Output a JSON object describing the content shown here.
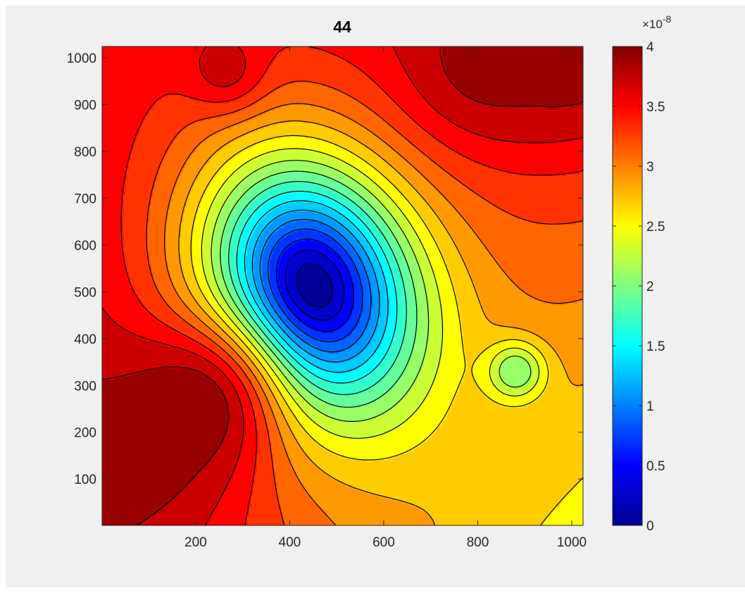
{
  "chart_data": {
    "type": "heatmap",
    "subtype": "filled-contour",
    "title": "44",
    "xlabel": "",
    "ylabel": "",
    "xlim": [
      1,
      1024
    ],
    "ylim": [
      1,
      1024
    ],
    "x_ticks": [
      "200",
      "400",
      "600",
      "800",
      "1000"
    ],
    "y_ticks": [
      "100",
      "200",
      "300",
      "400",
      "500",
      "600",
      "700",
      "800",
      "900",
      "1000"
    ],
    "colorbar": {
      "colormap": "jet",
      "range": [
        0,
        4
      ],
      "exponent_label": "×10",
      "exponent_power": "-8",
      "ticks": [
        "0",
        "0.5",
        "1",
        "1.5",
        "2",
        "2.5",
        "3",
        "3.5",
        "4"
      ]
    },
    "contour_levels": [
      0.2,
      0.4,
      0.6,
      0.8,
      1.0,
      1.2,
      1.4,
      1.6,
      1.8,
      2.0,
      2.2,
      2.4,
      2.6,
      2.8,
      3.0,
      3.2,
      3.4,
      3.6,
      3.8
    ],
    "features": [
      {
        "kind": "minimum",
        "x": 450,
        "y": 510,
        "value": 0.0
      },
      {
        "kind": "local_minimum",
        "x": 880,
        "y": 330,
        "value": 2.0
      },
      {
        "kind": "maximum",
        "x": 190,
        "y": 250,
        "value": 4.0
      },
      {
        "kind": "maximum",
        "x": 60,
        "y": 150,
        "value": 3.9
      },
      {
        "kind": "maximum",
        "x": 820,
        "y": 1000,
        "value": 3.9
      },
      {
        "kind": "maximum",
        "x": 1000,
        "y": 1000,
        "value": 3.9
      },
      {
        "kind": "local_maximum",
        "x": 260,
        "y": 980,
        "value": 3.7
      }
    ],
    "background_field": {
      "corners": {
        "bottom_left": 3.8,
        "bottom_right": 2.5,
        "top_left": 3.55,
        "top_right": 3.6
      },
      "mid_right_x_at_bottom": 2.4
    }
  }
}
